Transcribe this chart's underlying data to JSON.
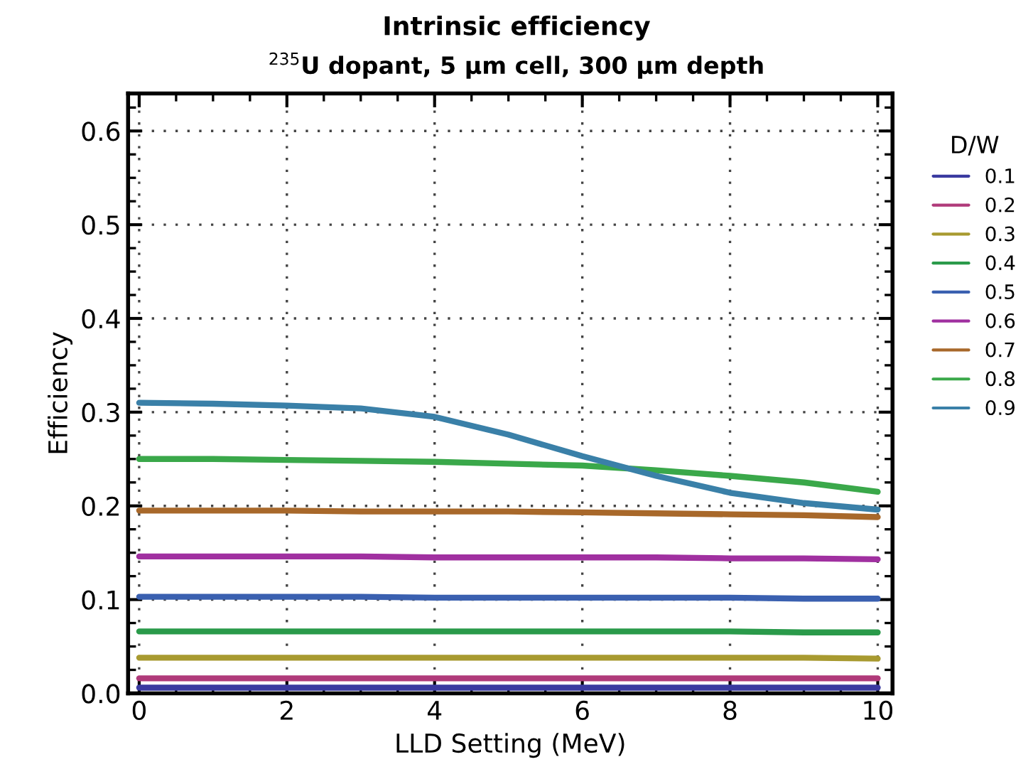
{
  "chart_data": {
    "type": "line",
    "title": "Intrinsic efficiency",
    "subtitle": "$^{235}$U dopant, 5 μm cell, 300 μm depth",
    "xlabel": "LLD Setting (MeV)",
    "ylabel": "Efficiency",
    "legend_title": "D/W",
    "x": [
      0,
      1,
      2,
      3,
      4,
      5,
      6,
      7,
      8,
      9,
      10
    ],
    "series": [
      {
        "name": "0.1",
        "color": "#3a3aa0",
        "values": [
          0.006,
          0.006,
          0.006,
          0.006,
          0.006,
          0.006,
          0.006,
          0.006,
          0.006,
          0.006,
          0.006
        ]
      },
      {
        "name": "0.2",
        "color": "#b03a7a",
        "values": [
          0.016,
          0.016,
          0.016,
          0.016,
          0.016,
          0.016,
          0.016,
          0.016,
          0.016,
          0.016,
          0.016
        ]
      },
      {
        "name": "0.3",
        "color": "#a89a30",
        "values": [
          0.038,
          0.038,
          0.038,
          0.038,
          0.038,
          0.038,
          0.038,
          0.038,
          0.038,
          0.038,
          0.037
        ]
      },
      {
        "name": "0.4",
        "color": "#2a9a4a",
        "values": [
          0.066,
          0.066,
          0.066,
          0.066,
          0.066,
          0.066,
          0.066,
          0.066,
          0.066,
          0.065,
          0.065
        ]
      },
      {
        "name": "0.5",
        "color": "#3a60b0",
        "values": [
          0.103,
          0.103,
          0.103,
          0.103,
          0.102,
          0.102,
          0.102,
          0.102,
          0.102,
          0.101,
          0.101
        ]
      },
      {
        "name": "0.6",
        "color": "#a030a0",
        "values": [
          0.146,
          0.146,
          0.146,
          0.146,
          0.145,
          0.145,
          0.145,
          0.145,
          0.144,
          0.144,
          0.143
        ]
      },
      {
        "name": "0.7",
        "color": "#a8682a",
        "values": [
          0.195,
          0.195,
          0.195,
          0.194,
          0.194,
          0.194,
          0.193,
          0.192,
          0.191,
          0.19,
          0.188
        ]
      },
      {
        "name": "0.8",
        "color": "#3aa84a",
        "values": [
          0.25,
          0.25,
          0.249,
          0.248,
          0.247,
          0.245,
          0.243,
          0.238,
          0.232,
          0.225,
          0.215
        ]
      },
      {
        "name": "0.9",
        "color": "#3a80a8",
        "values": [
          0.31,
          0.309,
          0.307,
          0.304,
          0.295,
          0.276,
          0.253,
          0.232,
          0.214,
          0.203,
          0.196
        ]
      }
    ],
    "xlim": [
      -0.15,
      10.2
    ],
    "ylim": [
      0,
      0.64
    ],
    "xticks": [
      0,
      2,
      4,
      6,
      8,
      10
    ],
    "yticks": [
      {
        "value": 0,
        "label": "0.0"
      },
      0.1,
      0.2,
      0.3,
      0.4,
      0.5,
      0.6
    ],
    "grid": true,
    "legend": "right",
    "line_style": "solid",
    "marker": "none"
  }
}
